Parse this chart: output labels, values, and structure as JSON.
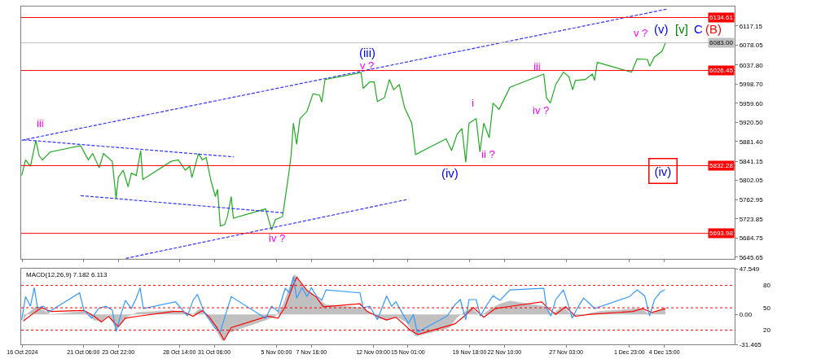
{
  "chart_data": [
    {
      "type": "line",
      "xlim": [
        "2024-10-16T12:00",
        "2024-12-10T00:00"
      ],
      "ylim": [
        5642,
        6157
      ],
      "tick_labels": "y",
      "xticks": [
        {
          "value": "2024-10-16T14:00",
          "label": null
        },
        {
          "value": "2024-10-21T06:00",
          "label": null
        },
        {
          "value": "2024-10-23T22:00",
          "label": null
        },
        {
          "value": "2024-10-28T14:00",
          "label": null
        },
        {
          "value": "2024-10-31T06:00",
          "label": null
        },
        {
          "value": "2024-11-05T00:00",
          "label": null
        },
        {
          "value": "2024-11-07T16:00",
          "label": null
        },
        {
          "value": "2024-11-12T09:00",
          "label": null
        },
        {
          "value": "2024-11-15T01:00",
          "label": null
        },
        {
          "value": "2024-11-19T18:00",
          "label": null
        },
        {
          "value": "2024-11-22T10:00",
          "label": null
        },
        {
          "value": "2024-11-27T03:00",
          "label": null
        },
        {
          "value": "2024-12-01T23:00",
          "label": null
        },
        {
          "value": "2024-12-04T15:00",
          "label": null
        }
      ],
      "yticks": [
        {
          "value": 6117.15,
          "label": "6117.15"
        },
        {
          "value": 6078.05,
          "label": "6078.05"
        },
        {
          "value": 6037.8,
          "label": "6037.80"
        },
        {
          "value": 5998.7,
          "label": "5998.70"
        },
        {
          "value": 5959.6,
          "label": "5959.60"
        },
        {
          "value": 5920.5,
          "label": "5920.50"
        },
        {
          "value": 5881.4,
          "label": "5881.40"
        },
        {
          "value": 5841.15,
          "label": "5841.15"
        },
        {
          "value": 5802.05,
          "label": "5802.05"
        },
        {
          "value": 5762.95,
          "label": "5762.95"
        },
        {
          "value": 5723.85,
          "label": "5723.85"
        },
        {
          "value": 5684.75,
          "label": "5684.75"
        },
        {
          "value": 5645.65,
          "label": "5645.65"
        }
      ],
      "series": [
        {
          "color": "#22aa22",
          "x": [
            "2024-10-16T13:00",
            "2024-10-16T20:00",
            "2024-10-17T05:00",
            "2024-10-17T15:00",
            "2024-10-17T21:00",
            "2024-10-18T03:00",
            "2024-10-18T17:00",
            "2024-10-21T01:00",
            "2024-10-21T15:00",
            "2024-10-21T23:00",
            "2024-10-22T11:00",
            "2024-10-22T19:00",
            "2024-10-23T11:00",
            "2024-10-23T18:00",
            "2024-10-23T22:00",
            "2024-10-24T07:00",
            "2024-10-24T16:00",
            "2024-10-24T22:00",
            "2024-10-25T07:00",
            "2024-10-25T15:00",
            "2024-10-25T19:00",
            "2024-10-27T23:00",
            "2024-10-28T12:00",
            "2024-10-29T01:00",
            "2024-10-29T09:00",
            "2024-10-29T13:00",
            "2024-10-30T01:00",
            "2024-10-30T08:00",
            "2024-10-30T15:00",
            "2024-10-31T00:00",
            "2024-10-31T08:00",
            "2024-10-31T12:00",
            "2024-10-31T17:00",
            "2024-11-01T01:00",
            "2024-11-01T06:00",
            "2024-11-01T13:00",
            "2024-11-01T17:00",
            "2024-11-04T04:00",
            "2024-11-04T15:00",
            "2024-11-04T22:00",
            "2024-11-05T11:00",
            "2024-11-05T18:00",
            "2024-11-06T00:00",
            "2024-11-06T03:00",
            "2024-11-06T07:00",
            "2024-11-06T13:00",
            "2024-11-06T19:00",
            "2024-11-07T08:00",
            "2024-11-07T19:00",
            "2024-11-08T07:00",
            "2024-11-08T11:00",
            "2024-11-08T17:00",
            "2024-11-11T11:00",
            "2024-11-11T15:00",
            "2024-11-12T03:00",
            "2024-11-12T11:00",
            "2024-11-12T17:00",
            "2024-11-13T06:00",
            "2024-11-13T15:00",
            "2024-11-13T23:00",
            "2024-11-14T09:00",
            "2024-11-14T19:00",
            "2024-11-15T08:00",
            "2024-11-15T15:00",
            "2024-11-17T23:00",
            "2024-11-18T09:00",
            "2024-11-18T19:00",
            "2024-11-19T04:00",
            "2024-11-19T11:00",
            "2024-11-19T17:00",
            "2024-11-20T06:00",
            "2024-11-20T13:00",
            "2024-11-20T20:00",
            "2024-11-21T06:00",
            "2024-11-21T13:00",
            "2024-11-22T00:00",
            "2024-11-22T12:00",
            "2024-11-22T20:00",
            "2024-11-25T10:00",
            "2024-11-25T15:00",
            "2024-11-25T22:00",
            "2024-11-26T08:00",
            "2024-11-26T22:00",
            "2024-11-27T08:00",
            "2024-11-27T15:00",
            "2024-11-27T20:00",
            "2024-11-28T14:00",
            "2024-11-29T03:00",
            "2024-11-29T07:00",
            "2024-11-29T12:00",
            "2024-12-02T03:00",
            "2024-12-02T13:00",
            "2024-12-03T08:00",
            "2024-12-03T12:00",
            "2024-12-03T21:00",
            "2024-12-04T11:00",
            "2024-12-04T17:00"
          ],
          "values": [
            5812,
            5844,
            5831,
            5884,
            5852,
            5844,
            5860,
            5873,
            5844,
            5857,
            5828,
            5857,
            5841,
            5765,
            5808,
            5823,
            5789,
            5817,
            5812,
            5863,
            5804,
            5841,
            5844,
            5823,
            5831,
            5808,
            5857,
            5844,
            5849,
            5801,
            5769,
            5784,
            5709,
            5712,
            5728,
            5769,
            5725,
            5744,
            5701,
            5722,
            5728,
            5781,
            5828,
            5855,
            5919,
            5876,
            5928,
            5943,
            5979,
            5976,
            5962,
            6008,
            6022,
            5990,
            6003,
            6003,
            5963,
            5971,
            6008,
            5987,
            5998,
            5950,
            5919,
            5855,
            5887,
            5863,
            5896,
            5908,
            5839,
            5919,
            5928,
            5860,
            5919,
            5889,
            5960,
            5947,
            5974,
            5992,
            6019,
            5971,
            5960,
            5998,
            6023,
            6014,
            5987,
            6006,
            6008,
            6019,
            6006,
            6043,
            6023,
            6050,
            6049,
            6035,
            6054,
            6066,
            6083
          ]
        },
        {
          "color": "#3333ff",
          "line_style": "dashed",
          "x": [
            "2024-10-16T13:00",
            "2024-12-04T21:00"
          ],
          "values": [
            5884,
            6152
          ]
        },
        {
          "color": "#3333ff",
          "line_style": "dashed",
          "x": [
            "2024-10-24T12:00",
            "2024-11-14T23:00"
          ],
          "values": [
            5643,
            5763
          ]
        },
        {
          "color": "#3333ff",
          "line_style": "dashed",
          "x": [
            "2024-10-16T16:00",
            "2024-11-01T18:00"
          ],
          "values": [
            5885,
            5850
          ]
        },
        {
          "color": "#3333ff",
          "line_style": "dashed",
          "x": [
            "2024-10-21T01:00",
            "2024-11-05T12:00"
          ],
          "values": [
            5771,
            5736
          ]
        }
      ],
      "ref_lines": [
        {
          "axis": "y",
          "value": 6134.61,
          "label": "6134.61",
          "color": "#ff0000"
        },
        {
          "axis": "y",
          "value": 6083.0,
          "label": "6083.00",
          "color": "#c0c0c0"
        },
        {
          "axis": "y",
          "value": 6026.45,
          "label": "6026.45",
          "color": "#ff0000"
        },
        {
          "axis": "y",
          "value": 5832.28,
          "label": "5832.28",
          "color": "#ff0000"
        },
        {
          "axis": "y",
          "value": 5693.98,
          "label": "5693.98",
          "color": "#ff0000"
        }
      ],
      "annotations": [
        "iii",
        "(iii)",
        "v ?",
        "iv ?",
        "(iv)",
        "i",
        "ii ?",
        "iii",
        "iv ?",
        "v ?",
        "(v)",
        "[v]",
        "C",
        "(B)",
        "(iv)"
      ]
    },
    {
      "type": "line",
      "title": "MACD(12,26,9) 7.182 6.113",
      "xlim": [
        "2024-10-16T12:00",
        "2024-12-10T00:00"
      ],
      "ylim": [
        -31.465,
        47.549
      ],
      "y2lim": [
        1,
        102
      ],
      "xticks": [
        {
          "value": "2024-10-16T14:00",
          "label": "16 Oct 2024"
        },
        {
          "value": "2024-10-21T06:00",
          "label": "21 Oct 06:00"
        },
        {
          "value": "2024-10-23T22:00",
          "label": "23 Oct 22:00"
        },
        {
          "value": "2024-10-28T14:00",
          "label": "28 Oct 14:00"
        },
        {
          "value": "2024-10-31T06:00",
          "label": "31 Oct 06:00"
        },
        {
          "value": "2024-11-05T00:00",
          "label": "5 Nov 00:00"
        },
        {
          "value": "2024-11-07T16:00",
          "label": "7 Nov 16:00"
        },
        {
          "value": "2024-11-12T09:00",
          "label": "12 Nov 09:00"
        },
        {
          "value": "2024-11-15T01:00",
          "label": "15 Nov 01:00"
        },
        {
          "value": "2024-11-19T18:00",
          "label": "19 Nov 18:00"
        },
        {
          "value": "2024-11-22T10:00",
          "label": "22 Nov 10:00"
        },
        {
          "value": "2024-11-27T03:00",
          "label": "27 Nov 03:00"
        },
        {
          "value": "2024-12-01T23:00",
          "label": "1 Dec 23:00"
        },
        {
          "value": "2024-12-04T15:00",
          "label": "4 Dec 15:00"
        }
      ],
      "yticks": [
        {
          "value": 47.549,
          "label": "47.549"
        },
        {
          "value": 0,
          "label": "0.00"
        },
        {
          "value": -31.465,
          "label": "-31.465"
        }
      ],
      "y2ticks": [
        80,
        50,
        20
      ],
      "series": [
        {
          "type": "area",
          "color": "#c0c0c0",
          "x": [
            "2024-10-16T16:00",
            "2024-10-16T22:00",
            "2024-10-17T15:00",
            "2024-10-18T05:00",
            "2024-10-18T18:00",
            "2024-10-21T07:00",
            "2024-10-22T02:00",
            "2024-10-22T15:00",
            "2024-10-23T04:00",
            "2024-10-23T18:00",
            "2024-10-24T02:00",
            "2024-10-24T15:00",
            "2024-10-25T10:00",
            "2024-10-28T03:00",
            "2024-10-28T20:00",
            "2024-10-29T15:00",
            "2024-10-30T04:00",
            "2024-10-30T17:00",
            "2024-10-31T11:00",
            "2024-10-31T21:00",
            "2024-11-01T09:00",
            "2024-11-04T04:00",
            "2024-11-04T22:00",
            "2024-11-05T11:00",
            "2024-11-06T00:00",
            "2024-11-06T09:00",
            "2024-11-06T19:00",
            "2024-11-07T08:00",
            "2024-11-08T01:00",
            "2024-11-08T19:00",
            "2024-11-11T14:00",
            "2024-11-12T03:00",
            "2024-11-12T17:00",
            "2024-11-13T10:00",
            "2024-11-14T03:00",
            "2024-11-14T22:00",
            "2024-11-15T15:00",
            "2024-11-18T05:00",
            "2024-11-18T19:00",
            "2024-11-19T08:00",
            "2024-11-19T21:00",
            "2024-11-20T14:00",
            "2024-11-21T09:00",
            "2024-11-22T02:00",
            "2024-11-22T20:00",
            "2024-11-25T15:00",
            "2024-11-25T23:00",
            "2024-11-26T22:00",
            "2024-11-27T15:00",
            "2024-11-28T14:00",
            "2024-11-29T16:00",
            "2024-12-02T19:00",
            "2024-12-03T12:00",
            "2024-12-04T17:00"
          ],
          "values": [
            -6,
            0,
            8,
            4,
            0,
            3,
            -6,
            -7,
            0,
            -15,
            -10,
            -2,
            2,
            4,
            2,
            0,
            6,
            -2,
            -18,
            -28,
            -19,
            -6,
            -2,
            8,
            28,
            42,
            33,
            25,
            17,
            10,
            7,
            2,
            -4,
            -6,
            -2,
            -8,
            -23,
            -14,
            -3,
            2,
            7,
            -2,
            6,
            11,
            14,
            8,
            0,
            8,
            -2,
            0,
            3,
            6,
            0,
            7
          ]
        },
        {
          "color": "#ff0000",
          "x": [
            "2024-10-16T16:00",
            "2024-10-17T08:00",
            "2024-10-18T01:00",
            "2024-10-18T18:00",
            "2024-10-21T07:00",
            "2024-10-22T02:00",
            "2024-10-22T15:00",
            "2024-10-23T04:00",
            "2024-10-23T22:00",
            "2024-10-24T11:00",
            "2024-10-25T10:00",
            "2024-10-28T03:00",
            "2024-10-28T20:00",
            "2024-10-29T15:00",
            "2024-10-30T08:00",
            "2024-10-30T21:00",
            "2024-10-31T11:00",
            "2024-11-01T00:00",
            "2024-11-01T13:00",
            "2024-11-04T08:00",
            "2024-11-05T03:00",
            "2024-11-05T16:00",
            "2024-11-06T05:00",
            "2024-11-06T13:00",
            "2024-11-07T08:00",
            "2024-11-08T01:00",
            "2024-11-08T14:00",
            "2024-11-11T09:00",
            "2024-11-11T22:00",
            "2024-11-12T17:00",
            "2024-11-13T10:00",
            "2024-11-14T03:00",
            "2024-11-15T06:00",
            "2024-11-15T19:00",
            "2024-11-18T15:00",
            "2024-11-19T08:00",
            "2024-11-20T01:00",
            "2024-11-20T20:00",
            "2024-11-21T17:00",
            "2024-11-22T16:00",
            "2024-11-25T06:00",
            "2024-11-25T19:00",
            "2024-11-26T08:00",
            "2024-11-27T02:00",
            "2024-11-27T20:00",
            "2024-11-28T23:00",
            "2024-12-02T05:00",
            "2024-12-02T23:00",
            "2024-12-03T16:00",
            "2024-12-04T17:00"
          ],
          "values": [
            -7,
            0,
            7,
            3,
            4,
            -2,
            -8,
            -2,
            -13,
            -4,
            -2,
            3,
            3,
            -2,
            4,
            -3,
            -14,
            -27,
            -14,
            -2,
            -4,
            8,
            28,
            39,
            25,
            18,
            8,
            11,
            3,
            -2,
            -6,
            -3,
            -17,
            -21,
            -10,
            -2,
            7,
            -3,
            6,
            8,
            13,
            6,
            0,
            8,
            -2,
            0,
            3,
            6,
            2,
            6
          ]
        },
        {
          "color": "#3399ff",
          "axis": "y2",
          "x": [
            "2024-10-16T13:00",
            "2024-10-16T20:00",
            "2024-10-17T05:00",
            "2024-10-17T12:00",
            "2024-10-17T18:00",
            "2024-10-18T05:00",
            "2024-10-18T14:00",
            "2024-10-20T23:00",
            "2024-10-21T07:00",
            "2024-10-21T21:00",
            "2024-10-22T10:00",
            "2024-10-22T23:00",
            "2024-10-23T11:00",
            "2024-10-23T18:00",
            "2024-10-24T02:00",
            "2024-10-24T11:00",
            "2024-10-24T22:00",
            "2024-10-25T07:00",
            "2024-10-25T14:00",
            "2024-10-25T20:00",
            "2024-10-28T07:00",
            "2024-10-28T20:00",
            "2024-10-29T05:00",
            "2024-10-29T15:00",
            "2024-10-29T23:00",
            "2024-10-30T11:00",
            "2024-10-30T17:00",
            "2024-10-31T07:00",
            "2024-10-31T17:00",
            "2024-11-01T04:00",
            "2024-11-01T13:00",
            "2024-11-04T04:00",
            "2024-11-04T15:00",
            "2024-11-05T03:00",
            "2024-11-05T16:00",
            "2024-11-06T00:00",
            "2024-11-06T07:00",
            "2024-11-06T13:00",
            "2024-11-06T23:00",
            "2024-11-07T08:00",
            "2024-11-07T16:00",
            "2024-11-08T01:00",
            "2024-11-08T11:00",
            "2024-11-08T19:00",
            "2024-11-11T09:00",
            "2024-11-11T15:00",
            "2024-11-12T03:00",
            "2024-11-12T17:00",
            "2024-11-13T01:00",
            "2024-11-13T10:00",
            "2024-11-13T19:00",
            "2024-11-14T03:00",
            "2024-11-14T13:00",
            "2024-11-15T02:00",
            "2024-11-15T11:00",
            "2024-11-15T18:00",
            "2024-11-18T01:00",
            "2024-11-18T15:00",
            "2024-11-19T01:00",
            "2024-11-19T11:00",
            "2024-11-19T17:00",
            "2024-11-20T06:00",
            "2024-11-20T14:00",
            "2024-11-21T00:00",
            "2024-11-21T13:00",
            "2024-11-22T02:00",
            "2024-11-22T20:00",
            "2024-11-25T10:00",
            "2024-11-25T15:00",
            "2024-11-25T23:00",
            "2024-11-26T08:00",
            "2024-11-26T22:00",
            "2024-11-27T07:00",
            "2024-11-27T14:00",
            "2024-11-28T00:00",
            "2024-11-28T11:00",
            "2024-11-28T23:00",
            "2024-11-29T07:00",
            "2024-12-01T23:00",
            "2024-12-02T13:00",
            "2024-12-03T03:00",
            "2024-12-03T12:00",
            "2024-12-03T21:00",
            "2024-12-04T08:00",
            "2024-12-04T16:00"
          ],
          "values": [
            34,
            65,
            52,
            77,
            50,
            52,
            44,
            70,
            47,
            36,
            49,
            52,
            47,
            18,
            39,
            60,
            49,
            63,
            77,
            49,
            58,
            47,
            39,
            60,
            68,
            45,
            38,
            23,
            18,
            44,
            65,
            36,
            52,
            45,
            76,
            70,
            92,
            63,
            77,
            65,
            77,
            66,
            60,
            74,
            70,
            50,
            52,
            34,
            49,
            66,
            52,
            58,
            45,
            29,
            41,
            17,
            39,
            54,
            61,
            34,
            61,
            61,
            39,
            52,
            66,
            60,
            74,
            76,
            50,
            39,
            61,
            74,
            54,
            36,
            50,
            63,
            55,
            49,
            65,
            74,
            66,
            39,
            61,
            71,
            74
          ]
        }
      ],
      "ref_lines": [
        {
          "axis": "y2",
          "value": 80,
          "color": "#ff0000",
          "line_style": "dotted"
        },
        {
          "axis": "y2",
          "value": 50,
          "color": "#ff0000",
          "line_style": "dotted"
        },
        {
          "axis": "y2",
          "value": 20,
          "color": "#ff0000",
          "line_style": "dotted"
        }
      ]
    }
  ]
}
